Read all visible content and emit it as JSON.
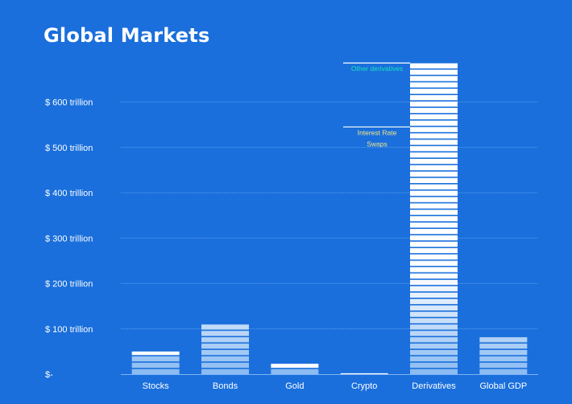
{
  "chart_data": {
    "type": "bar",
    "title": "Global Markets",
    "xlabel": "",
    "ylabel": "",
    "categories": [
      "Stocks",
      "Bonds",
      "Gold",
      "Crypto",
      "Derivatives",
      "Global GDP"
    ],
    "values": [
      50,
      111,
      23,
      2,
      686,
      85
    ],
    "ylim": [
      0,
      686
    ],
    "yticks": [
      0,
      100,
      200,
      300,
      400,
      500,
      600
    ],
    "ytick_labels": [
      "$-",
      "$ 100 trillion",
      "$ 200 trillion",
      "$ 300 trillion",
      "$ 400 trillion",
      "$ 500 trillion",
      "$ 600 trillion"
    ],
    "grid": true,
    "annotations": [
      {
        "text": "Other derivatives",
        "category": "Derivatives",
        "value": 686,
        "color": "#19e0b8"
      },
      {
        "text": "Interest Rate Swaps",
        "category": "Derivatives",
        "value": 545,
        "color": "#f3e58a"
      }
    ],
    "colors": {
      "background": "#1a6fdc",
      "bar_top": "#ffffff",
      "bar_bottom": "#8cbcf2",
      "grid": "#5c9ff0",
      "text": "#ffffff"
    }
  }
}
